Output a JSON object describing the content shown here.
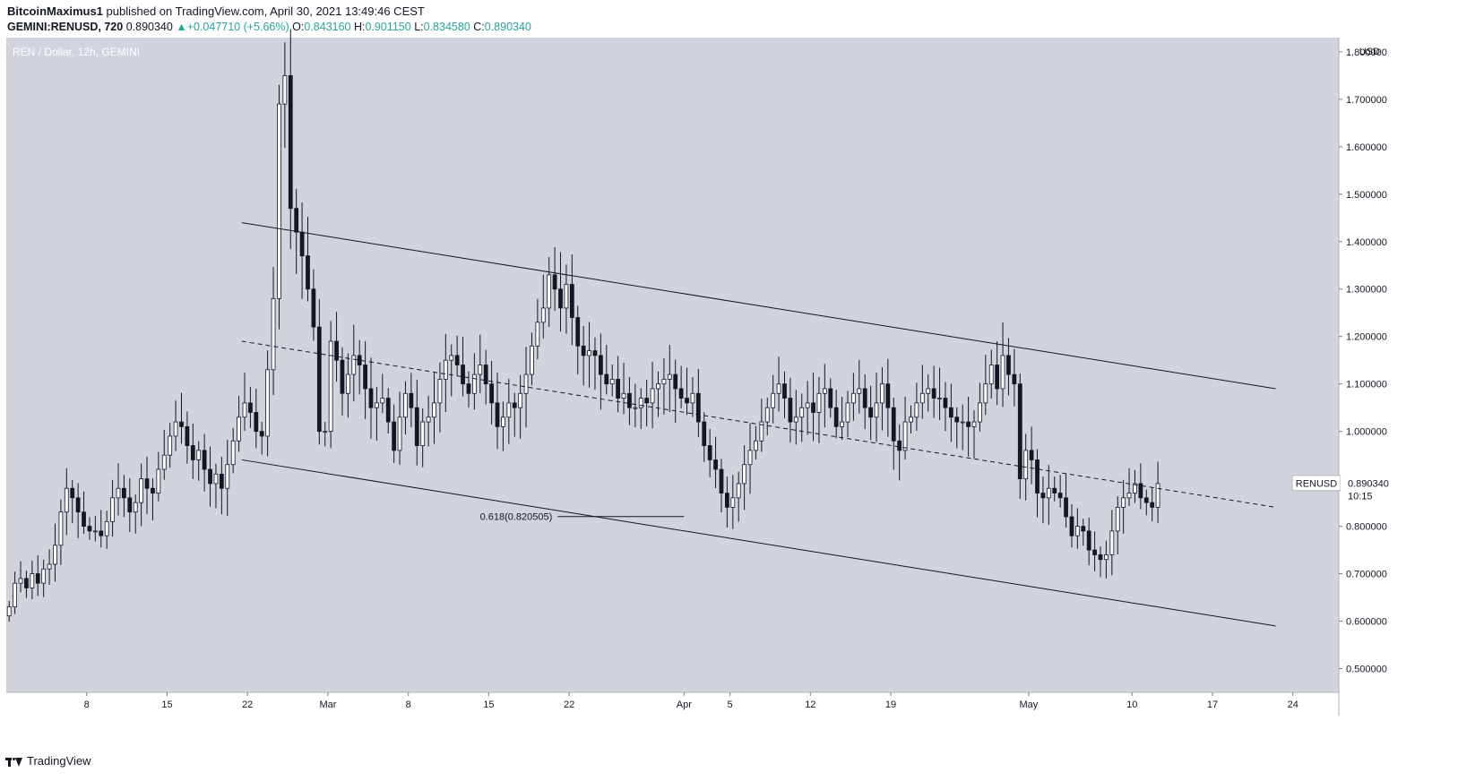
{
  "header": {
    "author": "BitcoinMaximus1",
    "published": " published on TradingView.com, April 30, 2021 13:49:46 CEST"
  },
  "ohlc": {
    "symbol": "GEMINI:RENUSD, 720",
    "price": "0.890340",
    "change": "+0.047710 (+5.66%)",
    "o_label": "O:",
    "o": "0.843160",
    "h_label": "H:",
    "h": "0.901150",
    "l_label": "L:",
    "l": "0.834580",
    "c_label": "C:",
    "c": "0.890340"
  },
  "footer": {
    "brand": "TradingView"
  },
  "chart_data": {
    "type": "candlestick",
    "title": "REN / Dollar, 12h, GEMINI",
    "currency": "USD",
    "y_ticks": [
      0.5,
      0.6,
      0.7,
      0.8,
      0.9,
      1.0,
      1.1,
      1.2,
      1.3,
      1.4,
      1.5,
      1.6,
      1.7,
      1.8
    ],
    "y_tick_labels": [
      "0.500000",
      "0.600000",
      "0.700000",
      "0.800000",
      "",
      "1.000000",
      "1.100000",
      "1.200000",
      "1.300000",
      "1.400000",
      "1.500000",
      "1.600000",
      "1.700000",
      "1.800000"
    ],
    "ylim": [
      0.45,
      1.83
    ],
    "x_start": "2021-02-01",
    "x_end": "2021-05-28",
    "x_ticks": [
      {
        "date": "2021-02-08",
        "label": "8"
      },
      {
        "date": "2021-02-15",
        "label": "15"
      },
      {
        "date": "2021-02-22",
        "label": "22"
      },
      {
        "date": "2021-03-01",
        "label": "Mar"
      },
      {
        "date": "2021-03-08",
        "label": "8"
      },
      {
        "date": "2021-03-15",
        "label": "15"
      },
      {
        "date": "2021-03-22",
        "label": "22"
      },
      {
        "date": "2021-04-01",
        "label": "Apr"
      },
      {
        "date": "2021-04-05",
        "label": "5"
      },
      {
        "date": "2021-04-12",
        "label": "12"
      },
      {
        "date": "2021-04-19",
        "label": "19"
      },
      {
        "date": "2021-05-01",
        "label": "May"
      },
      {
        "date": "2021-05-10",
        "label": "10"
      },
      {
        "date": "2021-05-17",
        "label": "17"
      },
      {
        "date": "2021-05-24",
        "label": "24"
      }
    ],
    "candles_start": "2021-02-01T00:00",
    "candles_interval": "12h",
    "candles_close": [
      0.63,
      0.68,
      0.69,
      0.67,
      0.7,
      0.68,
      0.71,
      0.72,
      0.76,
      0.83,
      0.88,
      0.86,
      0.83,
      0.8,
      0.79,
      0.79,
      0.78,
      0.81,
      0.86,
      0.88,
      0.86,
      0.83,
      0.85,
      0.9,
      0.88,
      0.87,
      0.92,
      0.95,
      0.99,
      1.02,
      1.01,
      0.97,
      0.94,
      0.96,
      0.92,
      0.89,
      0.91,
      0.88,
      0.93,
      0.98,
      1.03,
      1.06,
      1.04,
      1.0,
      0.99,
      1.13,
      1.28,
      1.69,
      1.75,
      1.47,
      1.42,
      1.37,
      1.3,
      1.22,
      1.0,
      1.0,
      1.19,
      1.15,
      1.08,
      1.12,
      1.16,
      1.14,
      1.09,
      1.05,
      1.06,
      1.07,
      1.02,
      0.96,
      1.03,
      1.08,
      1.05,
      0.97,
      1.02,
      1.03,
      1.06,
      1.11,
      1.15,
      1.16,
      1.14,
      1.1,
      1.08,
      1.12,
      1.14,
      1.1,
      1.06,
      1.01,
      1.03,
      1.06,
      1.05,
      1.08,
      1.12,
      1.18,
      1.23,
      1.26,
      1.33,
      1.3,
      1.26,
      1.31,
      1.24,
      1.18,
      1.16,
      1.17,
      1.16,
      1.12,
      1.1,
      1.11,
      1.07,
      1.08,
      1.05,
      1.05,
      1.07,
      1.06,
      1.09,
      1.1,
      1.11,
      1.12,
      1.09,
      1.07,
      1.06,
      1.08,
      1.02,
      0.97,
      0.94,
      0.92,
      0.87,
      0.84,
      0.86,
      0.89,
      0.93,
      0.96,
      0.98,
      1.02,
      1.05,
      1.08,
      1.1,
      1.07,
      1.02,
      1.03,
      1.05,
      1.06,
      1.04,
      1.08,
      1.09,
      1.05,
      1.01,
      1.02,
      1.06,
      1.08,
      1.09,
      1.05,
      1.03,
      1.06,
      1.1,
      1.05,
      0.98,
      0.96,
      1.02,
      1.03,
      1.06,
      1.08,
      1.09,
      1.07,
      1.07,
      1.05,
      1.03,
      1.02,
      1.02,
      1.01,
      1.02,
      1.06,
      1.1,
      1.14,
      1.09,
      1.16,
      1.12,
      1.1,
      0.9,
      0.96,
      0.94,
      0.87,
      0.86,
      0.88,
      0.87,
      0.86,
      0.82,
      0.78,
      0.8,
      0.79,
      0.75,
      0.74,
      0.73,
      0.74,
      0.79,
      0.84,
      0.86,
      0.87,
      0.89,
      0.86,
      0.85,
      0.84,
      0.89
    ],
    "channel_upper": [
      {
        "t": "2021-02-21T12:00",
        "y": 1.44
      },
      {
        "t": "2021-05-22T12:00",
        "y": 1.09
      }
    ],
    "channel_lower": [
      {
        "t": "2021-02-21T12:00",
        "y": 0.94
      },
      {
        "t": "2021-05-22T12:00",
        "y": 0.59
      }
    ],
    "channel_mid": [
      {
        "t": "2021-02-21T12:00",
        "y": 1.19
      },
      {
        "t": "2021-05-22T12:00",
        "y": 0.84
      }
    ],
    "fib_line": {
      "t_start": "2021-03-21",
      "t_end": "2021-04-01",
      "y": 0.820505,
      "label": "0.618(0.820505)"
    },
    "last_price": {
      "symbol": "RENUSD",
      "value": "0.890340",
      "countdown": "10:15",
      "y": 0.89034
    },
    "grid": false,
    "legend": "none"
  },
  "colors": {
    "plot_bg": "#d1d4dc",
    "candle_up": "#ffffff",
    "candle_down": "#131722",
    "line": "#131722",
    "text": "#131722",
    "accent_green": "#26a69a"
  }
}
